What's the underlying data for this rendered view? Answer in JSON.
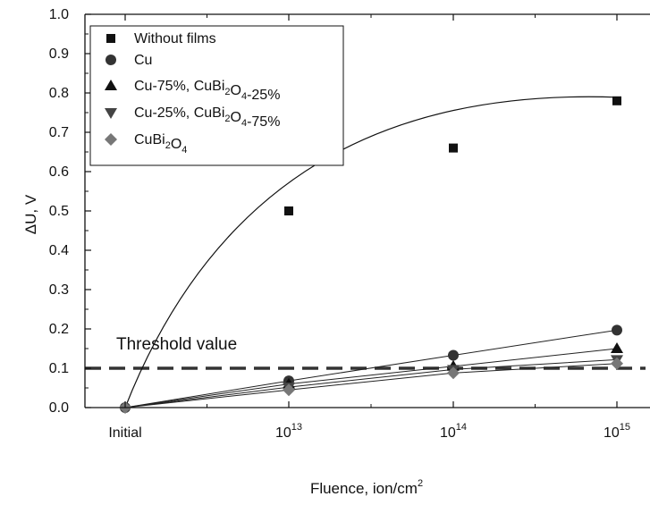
{
  "chart_data": {
    "type": "scatter",
    "categories": [
      "Initial",
      "10^13",
      "10^14",
      "10^15"
    ],
    "x_tick_labels": [
      {
        "base": "Initial",
        "exp": ""
      },
      {
        "base": "10",
        "exp": "13"
      },
      {
        "base": "10",
        "exp": "14"
      },
      {
        "base": "10",
        "exp": "15"
      }
    ],
    "xlabel": {
      "text": "Fluence, ion/cm",
      "sup": "2"
    },
    "ylabel": "ΔU, V",
    "ylim": [
      0.0,
      1.0
    ],
    "y_ticks": [
      "0.0",
      "0.1",
      "0.2",
      "0.3",
      "0.4",
      "0.5",
      "0.6",
      "0.7",
      "0.8",
      "0.9",
      "1.0"
    ],
    "threshold": {
      "value": 0.1,
      "label": "Threshold value"
    },
    "legend_position": "top-left",
    "series": [
      {
        "name": "Without films",
        "name_parts": [
          {
            "t": "Without films"
          }
        ],
        "marker": "square",
        "color": "#111111",
        "values": [
          0.0,
          0.5,
          0.66,
          0.78
        ],
        "fit": "smooth"
      },
      {
        "name": "Cu",
        "name_parts": [
          {
            "t": "Cu"
          }
        ],
        "marker": "circle",
        "color": "#333333",
        "values": [
          0.0,
          0.068,
          0.133,
          0.197
        ],
        "fit": "linear"
      },
      {
        "name": "Cu-75%, CuBi2O4-25%",
        "name_parts": [
          {
            "t": "Cu-75%, CuBi"
          },
          {
            "s": "2"
          },
          {
            "t": "O"
          },
          {
            "s": "4"
          },
          {
            "t": "-25%"
          }
        ],
        "marker": "triangle-up",
        "color": "#111111",
        "values": [
          0.0,
          0.06,
          0.105,
          0.15
        ],
        "fit": "linear"
      },
      {
        "name": "Cu-25%, CuBi2O4-75%",
        "name_parts": [
          {
            "t": "Cu-25%, CuBi"
          },
          {
            "s": "2"
          },
          {
            "t": "O"
          },
          {
            "s": "4"
          },
          {
            "t": "-75%"
          }
        ],
        "marker": "triangle-down",
        "color": "#444444",
        "values": [
          0.0,
          0.052,
          0.097,
          0.122
        ],
        "fit": "linear"
      },
      {
        "name": "CuBi2O4",
        "name_parts": [
          {
            "t": "CuBi"
          },
          {
            "s": "2"
          },
          {
            "t": "O"
          },
          {
            "s": "4"
          }
        ],
        "marker": "diamond",
        "color": "#777777",
        "values": [
          0.0,
          0.045,
          0.088,
          0.112
        ],
        "fit": "linear"
      }
    ]
  }
}
